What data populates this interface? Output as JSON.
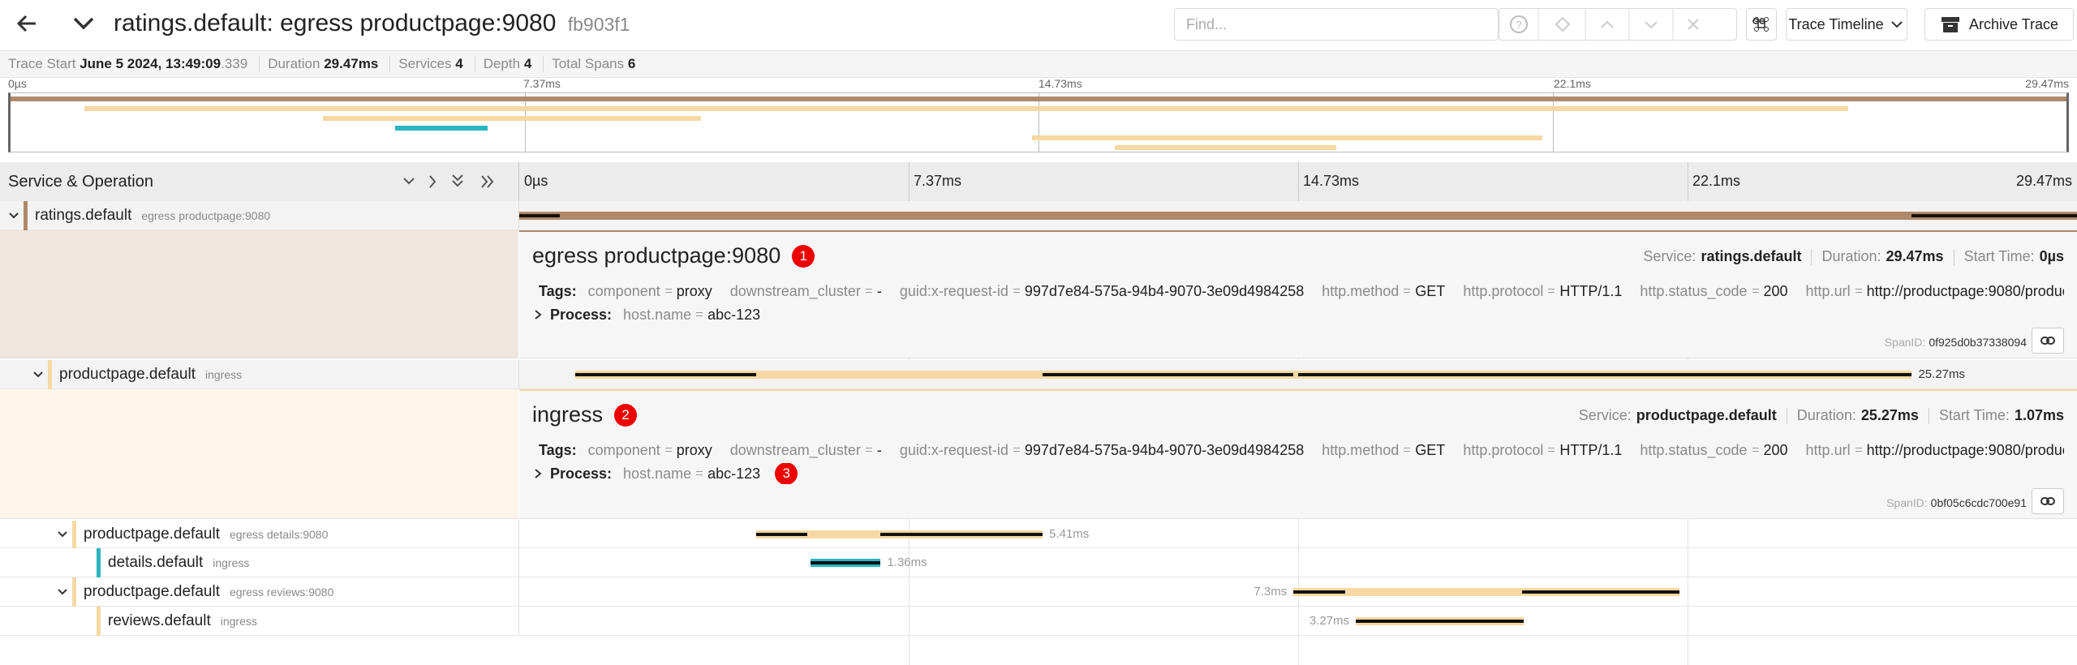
{
  "header": {
    "title": "ratings.default: egress productpage:9080",
    "trace_id": "fb903f1",
    "search_placeholder": "Find...",
    "view_selector": "Trace Timeline",
    "archive_button": "Archive Trace"
  },
  "summary": {
    "trace_start_label": "Trace Start",
    "trace_start": "June 5 2024, 13:49:09",
    "trace_start_ms": ".339",
    "duration_label": "Duration",
    "duration": "29.47ms",
    "services_label": "Services",
    "services": 4,
    "depth_label": "Depth",
    "depth": 4,
    "total_spans_label": "Total Spans",
    "total_spans": 6
  },
  "minimap_ticks": [
    "0µs",
    "7.37ms",
    "14.73ms",
    "22.1ms",
    "29.47ms"
  ],
  "timeline_header": {
    "title": "Service & Operation",
    "ticks": [
      "0µs",
      "7.37ms",
      "14.73ms",
      "22.1ms",
      "29.47ms"
    ]
  },
  "spans": [
    {
      "service": "ratings.default",
      "operation": "egress productpage:9080",
      "detail": {
        "title": "egress productpage:9080",
        "badge": 1,
        "service_label": "Service:",
        "service": "ratings.default",
        "duration_label": "Duration:",
        "duration": "29.47ms",
        "start_label": "Start Time:",
        "start": "0µs",
        "tags_label": "Tags:",
        "tags": [
          {
            "key": "component",
            "value": "proxy"
          },
          {
            "key": "downstream_cluster",
            "value": "-"
          },
          {
            "key": "guid:x-request-id",
            "value": "997d7e84-575a-94b4-9070-3e09d4984258"
          },
          {
            "key": "http.method",
            "value": "GET"
          },
          {
            "key": "http.protocol",
            "value": "HTTP/1.1"
          },
          {
            "key": "http.status_code",
            "value": "200"
          },
          {
            "key": "http.url",
            "value": "http://productpage:9080/produc..."
          }
        ],
        "process_label": "Process:",
        "process": [
          {
            "key": "host.name",
            "value": "abc-123"
          }
        ],
        "span_id_label": "SpanID:",
        "span_id": "0f925d0b37338094"
      }
    },
    {
      "service": "productpage.default",
      "operation": "ingress",
      "duration": "25.27ms",
      "detail": {
        "title": "ingress",
        "badge": 2,
        "service_label": "Service:",
        "service": "productpage.default",
        "duration_label": "Duration:",
        "duration": "25.27ms",
        "start_label": "Start Time:",
        "start": "1.07ms",
        "tags_label": "Tags:",
        "tags": [
          {
            "key": "component",
            "value": "proxy"
          },
          {
            "key": "downstream_cluster",
            "value": "-"
          },
          {
            "key": "guid:x-request-id",
            "value": "997d7e84-575a-94b4-9070-3e09d4984258"
          },
          {
            "key": "http.method",
            "value": "GET"
          },
          {
            "key": "http.protocol",
            "value": "HTTP/1.1"
          },
          {
            "key": "http.status_code",
            "value": "200"
          },
          {
            "key": "http.url",
            "value": "http://productpage:9080/produc..."
          }
        ],
        "process_label": "Process:",
        "process": [
          {
            "key": "host.name",
            "value": "abc-123"
          }
        ],
        "process_badge": 3,
        "span_id_label": "SpanID:",
        "span_id": "0bf05c6cdc700e91"
      }
    },
    {
      "service": "productpage.default",
      "operation": "egress details:9080",
      "duration": "5.41ms"
    },
    {
      "service": "details.default",
      "operation": "ingress",
      "duration": "1.36ms"
    },
    {
      "service": "productpage.default",
      "operation": "egress reviews:9080",
      "duration": "7.3ms"
    },
    {
      "service": "reviews.default",
      "operation": "ingress",
      "duration": "3.27ms"
    }
  ]
}
